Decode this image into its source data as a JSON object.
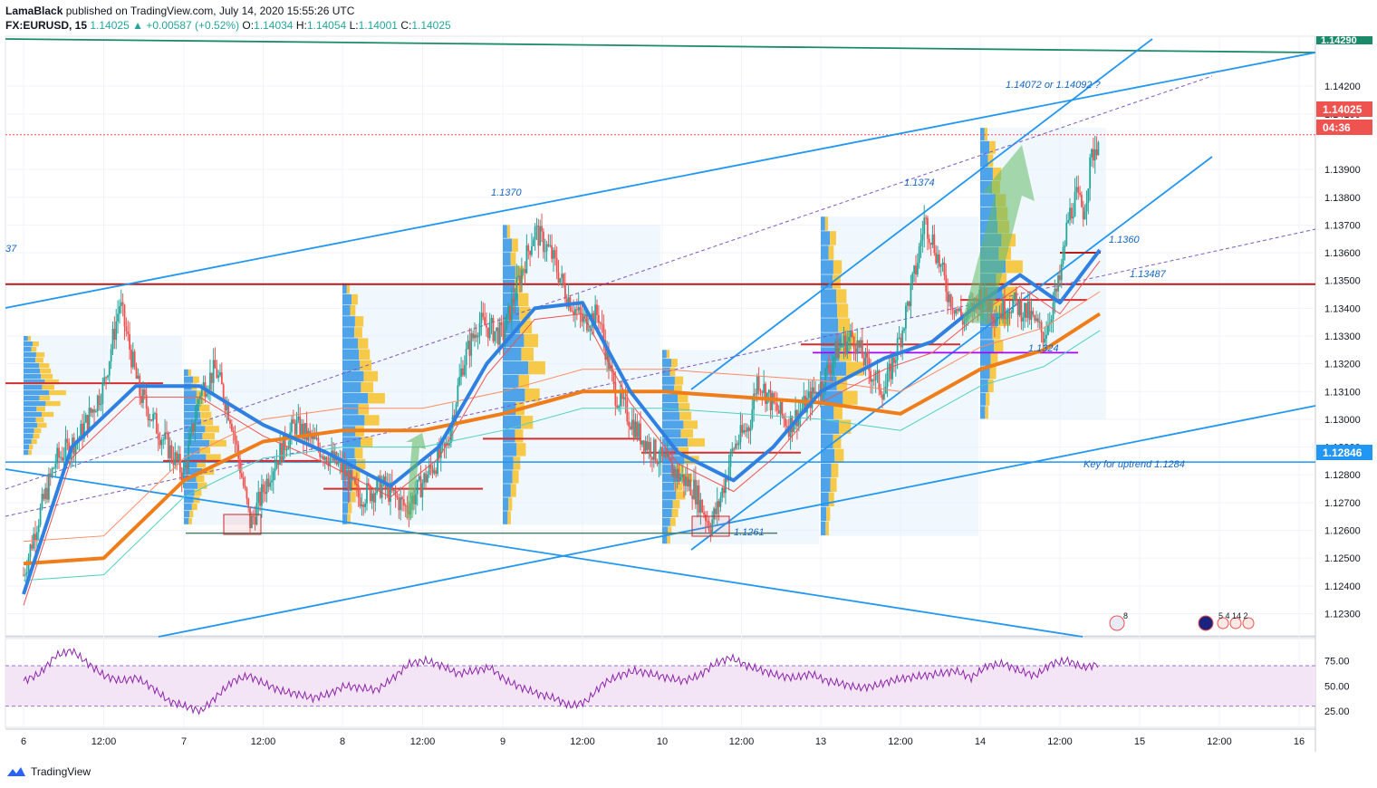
{
  "header": {
    "author": "LamaBlack",
    "published_text": "published on TradingView.com, July 14, 2020 15:55:26 UTC",
    "symbol": "FX:EURUSD, 15",
    "last": "1.14025",
    "change": "▲ +0.00587 (+0.52%)",
    "o_label": "O:",
    "o": "1.14034",
    "h_label": "H:",
    "h": "1.14054",
    "l_label": "L:",
    "l": "1.14001",
    "c_label": "C:",
    "c": "1.14025"
  },
  "price_axis": {
    "ticks": [
      "1.14200",
      "1.14100",
      "1.13900",
      "1.13800",
      "1.13700",
      "1.13600",
      "1.13500",
      "1.13400",
      "1.13300",
      "1.13200",
      "1.13100",
      "1.13000",
      "1.12900",
      "1.12800",
      "1.12700",
      "1.12600",
      "1.12500",
      "1.12400",
      "1.12300"
    ],
    "last_price_label": "1.14025",
    "countdown": "04:36",
    "key_level_label": "1.12846",
    "top_partial_label": "1.14290"
  },
  "rsi_axis": {
    "ticks": [
      "75.00",
      "50.00",
      "25.00"
    ]
  },
  "time_axis": {
    "ticks": [
      "6",
      "12:00",
      "7",
      "12:00",
      "8",
      "12:00",
      "9",
      "12:00",
      "10",
      "12:00",
      "13",
      "12:00",
      "14",
      "12:00",
      "15",
      "12:00",
      "16"
    ]
  },
  "annotations": {
    "left_cut": "37",
    "high_1370": "1.1370",
    "high_1374": "1.1374",
    "target": "1.14072 or 1.14092 ?",
    "level_1360": "1.1360",
    "level_13487": "1.13487",
    "level_1324": "1.1324",
    "low_1261": "1.1261",
    "key_uptrend": "Key for uptrend 1.1284",
    "event_count_us": "8",
    "event_count_eu": "5 4 14 2"
  },
  "footer": {
    "brand": "TradingView"
  },
  "colors": {
    "up": "#26a69a",
    "down": "#ef5350",
    "trend": "#2196f3",
    "ema_blue": "#2f80e0",
    "ema_orange": "#ef7d1a",
    "resistance": "#b71c1c",
    "support_blue": "#2196f3",
    "green_line": "#1b8a6b",
    "purple": "#aa00ff",
    "rsi": "#8e24aa",
    "rsi_band": "#f3e5f5",
    "vp_blue": "#4fa3e8",
    "vp_yellow": "#f7c948",
    "vp_bg": "#e3f1fc"
  },
  "chart_data": {
    "type": "candlestick",
    "symbol": "FX:EURUSD",
    "timeframe": "15",
    "ylim": [
      1.1222,
      1.1438
    ],
    "x_ticks": [
      "6",
      "12:00",
      "7",
      "12:00",
      "8",
      "12:00",
      "9",
      "12:00",
      "10",
      "12:00",
      "13",
      "12:00",
      "14",
      "12:00",
      "15",
      "12:00",
      "16"
    ],
    "close_path": [
      [
        0,
        1.1244
      ],
      [
        0.08,
        1.1262
      ],
      [
        0.2,
        1.1285
      ],
      [
        0.35,
        1.1294
      ],
      [
        0.5,
        1.1312
      ],
      [
        0.6,
        1.1342
      ],
      [
        0.72,
        1.131
      ],
      [
        0.85,
        1.1295
      ],
      [
        1.0,
        1.128
      ],
      [
        1.1,
        1.131
      ],
      [
        1.2,
        1.1318
      ],
      [
        1.3,
        1.13
      ],
      [
        1.42,
        1.1262
      ],
      [
        1.55,
        1.1282
      ],
      [
        1.7,
        1.1298
      ],
      [
        1.85,
        1.129
      ],
      [
        2.0,
        1.1282
      ],
      [
        2.1,
        1.1272
      ],
      [
        2.25,
        1.1276
      ],
      [
        2.4,
        1.1268
      ],
      [
        2.55,
        1.1282
      ],
      [
        2.65,
        1.129
      ],
      [
        2.75,
        1.132
      ],
      [
        2.85,
        1.1335
      ],
      [
        3.0,
        1.133
      ],
      [
        3.1,
        1.135
      ],
      [
        3.2,
        1.1368
      ],
      [
        3.3,
        1.136
      ],
      [
        3.4,
        1.1345
      ],
      [
        3.5,
        1.1335
      ],
      [
        3.6,
        1.1338
      ],
      [
        3.7,
        1.131
      ],
      [
        3.85,
        1.1295
      ],
      [
        4.0,
        1.1285
      ],
      [
        4.1,
        1.128
      ],
      [
        4.2,
        1.1275
      ],
      [
        4.3,
        1.1262
      ],
      [
        4.35,
        1.1268
      ],
      [
        4.45,
        1.129
      ],
      [
        4.55,
        1.1298
      ],
      [
        4.6,
        1.1315
      ],
      [
        4.7,
        1.1305
      ],
      [
        4.8,
        1.1298
      ],
      [
        4.9,
        1.1305
      ],
      [
        5.0,
        1.1312
      ],
      [
        5.1,
        1.1325
      ],
      [
        5.2,
        1.133
      ],
      [
        5.3,
        1.1318
      ],
      [
        5.4,
        1.131
      ],
      [
        5.5,
        1.133
      ],
      [
        5.6,
        1.1355
      ],
      [
        5.65,
        1.1372
      ],
      [
        5.7,
        1.1365
      ],
      [
        5.8,
        1.1345
      ],
      [
        5.9,
        1.1335
      ],
      [
        6.0,
        1.1345
      ],
      [
        6.1,
        1.1338
      ],
      [
        6.2,
        1.1342
      ],
      [
        6.3,
        1.1338
      ],
      [
        6.4,
        1.133
      ],
      [
        6.5,
        1.135
      ],
      [
        6.55,
        1.1372
      ],
      [
        6.6,
        1.138
      ],
      [
        6.65,
        1.1375
      ],
      [
        6.7,
        1.1395
      ],
      [
        6.75,
        1.1402
      ]
    ],
    "overlays": {
      "ema_blue": [
        [
          0,
          1.1237
        ],
        [
          0.3,
          1.129
        ],
        [
          0.7,
          1.1312
        ],
        [
          1.1,
          1.1312
        ],
        [
          1.5,
          1.1298
        ],
        [
          1.9,
          1.1288
        ],
        [
          2.3,
          1.1276
        ],
        [
          2.6,
          1.129
        ],
        [
          2.9,
          1.132
        ],
        [
          3.2,
          1.134
        ],
        [
          3.5,
          1.1342
        ],
        [
          3.8,
          1.131
        ],
        [
          4.1,
          1.1288
        ],
        [
          4.45,
          1.1278
        ],
        [
          4.7,
          1.129
        ],
        [
          5.0,
          1.131
        ],
        [
          5.4,
          1.1322
        ],
        [
          5.7,
          1.1328
        ],
        [
          6.0,
          1.1342
        ],
        [
          6.25,
          1.1352
        ],
        [
          6.5,
          1.1342
        ],
        [
          6.75,
          1.1361
        ]
      ],
      "ema_orange": [
        [
          0,
          1.1248
        ],
        [
          0.5,
          1.125
        ],
        [
          1.0,
          1.1278
        ],
        [
          1.5,
          1.1292
        ],
        [
          2.0,
          1.1296
        ],
        [
          2.5,
          1.1296
        ],
        [
          3.0,
          1.1302
        ],
        [
          3.5,
          1.131
        ],
        [
          4.0,
          1.131
        ],
        [
          4.5,
          1.1308
        ],
        [
          5.0,
          1.1306
        ],
        [
          5.5,
          1.1302
        ],
        [
          6.0,
          1.1318
        ],
        [
          6.4,
          1.1325
        ],
        [
          6.75,
          1.1338
        ]
      ]
    },
    "levels": [
      {
        "label": "1.13487",
        "value": 1.13487
      },
      {
        "label": "1.1360",
        "value": 1.136
      },
      {
        "label": "1.1324",
        "value": 1.1324
      },
      {
        "label": "Key for uptrend 1.1284",
        "value": 1.12846
      },
      {
        "label": "1.1261",
        "value": 1.1261
      },
      {
        "label": "1.1370",
        "value": 1.137
      },
      {
        "label": "1.1374",
        "value": 1.1374
      },
      {
        "label": "1.14072 or 1.14092 ?",
        "value": 1.1408
      }
    ],
    "last_price": 1.14025,
    "rsi": {
      "ylim": [
        10,
        95
      ],
      "band": [
        30,
        70
      ],
      "ticks": [
        75,
        50,
        25
      ],
      "values": [
        55,
        62,
        80,
        85,
        72,
        60,
        55,
        58,
        48,
        35,
        30,
        25,
        40,
        55,
        60,
        52,
        45,
        42,
        38,
        42,
        50,
        48,
        46,
        58,
        72,
        75,
        70,
        62,
        65,
        68,
        55,
        48,
        42,
        38,
        30,
        35,
        52,
        60,
        65,
        62,
        58,
        55,
        60,
        72,
        78,
        70,
        65,
        60,
        58,
        62,
        55,
        52,
        48,
        50,
        55,
        58,
        60,
        62,
        65,
        58,
        70,
        72,
        65,
        60,
        72,
        75,
        68,
        72
      ]
    }
  }
}
